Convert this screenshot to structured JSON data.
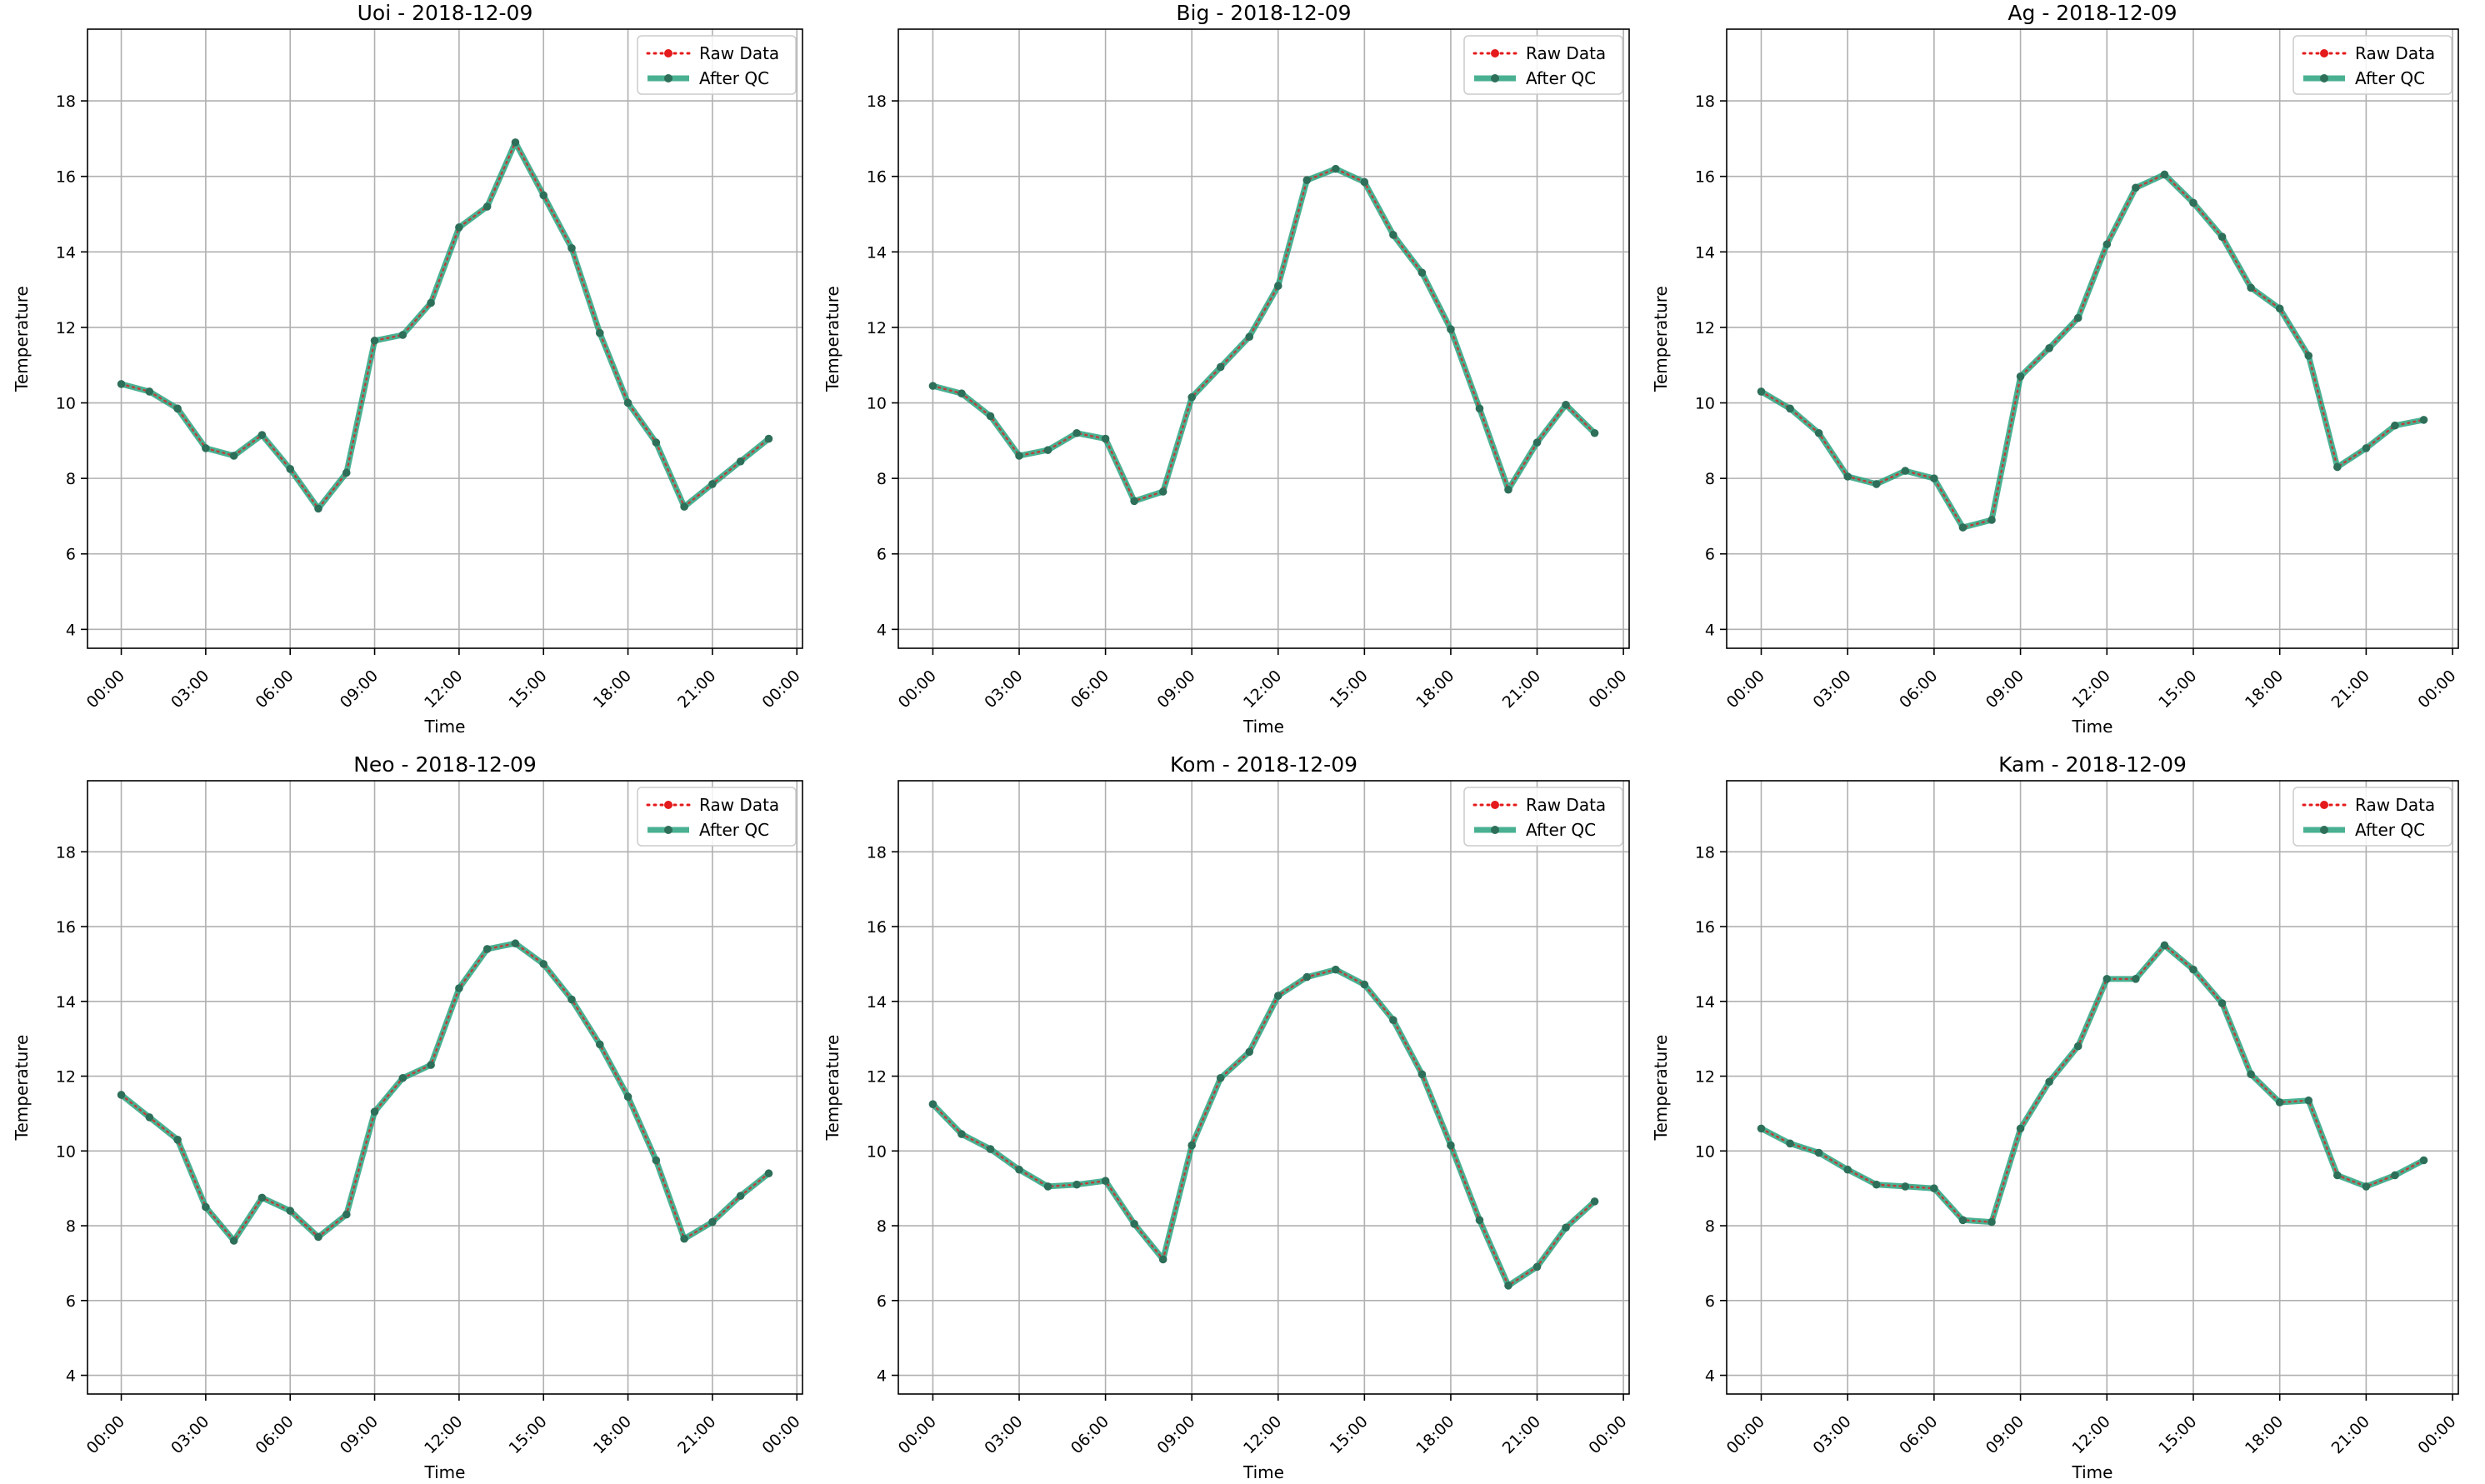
{
  "figure": {
    "ylabel": "Temperature",
    "xlabel": "Time"
  },
  "legend": {
    "placement": "upper-right",
    "raw_label": "Raw Data",
    "qc_label": "After QC"
  },
  "colors": {
    "raw": "#e41a1c",
    "qc": "#1b9e77",
    "qc_marker": "#2e6f5a",
    "grid": "#b0b0b0"
  },
  "chart_data": [
    {
      "type": "line",
      "title": "Uoi - 2018-12-09",
      "xlabel": "Time",
      "ylabel": "Temperature",
      "x_unit": "hour",
      "x": [
        0,
        1,
        2,
        3,
        4,
        5,
        6,
        7,
        8,
        9,
        10,
        11,
        12,
        13,
        14,
        15,
        16,
        17,
        18,
        19,
        20,
        21,
        22,
        23
      ],
      "xlim": [
        -1.2,
        24.2
      ],
      "ylim": [
        3.5,
        19.9
      ],
      "x_ticks": [
        0,
        3,
        6,
        9,
        12,
        15,
        18,
        21,
        24
      ],
      "x_tick_labels": [
        "00:00",
        "03:00",
        "06:00",
        "09:00",
        "12:00",
        "15:00",
        "18:00",
        "21:00",
        "00:00"
      ],
      "y_ticks": [
        4,
        6,
        8,
        10,
        12,
        14,
        16,
        18
      ],
      "y_tick_labels": [
        "4",
        "6",
        "8",
        "10",
        "12",
        "14",
        "16",
        "18"
      ],
      "grid": true,
      "legend": "upper-right",
      "series": [
        {
          "name": "Raw Data",
          "values": [
            10.5,
            10.3,
            9.85,
            8.8,
            8.6,
            9.15,
            8.25,
            7.2,
            8.15,
            11.65,
            11.8,
            12.65,
            14.65,
            15.2,
            16.9,
            15.5,
            14.1,
            11.85,
            10.0,
            8.95,
            7.25,
            7.85,
            8.45,
            9.05
          ]
        },
        {
          "name": "After QC",
          "values": [
            10.5,
            10.3,
            9.85,
            8.8,
            8.6,
            9.15,
            8.25,
            7.2,
            8.15,
            11.65,
            11.8,
            12.65,
            14.65,
            15.2,
            16.9,
            15.5,
            14.1,
            11.85,
            10.0,
            8.95,
            7.25,
            7.85,
            8.45,
            9.05
          ]
        }
      ]
    },
    {
      "type": "line",
      "title": "Big - 2018-12-09",
      "xlabel": "Time",
      "ylabel": "Temperature",
      "x_unit": "hour",
      "x": [
        0,
        1,
        2,
        3,
        4,
        5,
        6,
        7,
        8,
        9,
        10,
        11,
        12,
        13,
        14,
        15,
        16,
        17,
        18,
        19,
        20,
        21,
        22,
        23
      ],
      "xlim": [
        -1.2,
        24.2
      ],
      "ylim": [
        3.5,
        19.9
      ],
      "x_ticks": [
        0,
        3,
        6,
        9,
        12,
        15,
        18,
        21,
        24
      ],
      "x_tick_labels": [
        "00:00",
        "03:00",
        "06:00",
        "09:00",
        "12:00",
        "15:00",
        "18:00",
        "21:00",
        "00:00"
      ],
      "y_ticks": [
        4,
        6,
        8,
        10,
        12,
        14,
        16,
        18
      ],
      "y_tick_labels": [
        "4",
        "6",
        "8",
        "10",
        "12",
        "14",
        "16",
        "18"
      ],
      "grid": true,
      "legend": "upper-right",
      "series": [
        {
          "name": "Raw Data",
          "values": [
            10.45,
            10.25,
            9.65,
            8.6,
            8.75,
            9.2,
            9.05,
            7.4,
            7.65,
            10.15,
            10.95,
            11.75,
            13.1,
            15.9,
            16.2,
            15.85,
            14.45,
            13.45,
            11.95,
            9.85,
            7.7,
            8.95,
            9.95,
            9.2
          ]
        },
        {
          "name": "After QC",
          "values": [
            10.45,
            10.25,
            9.65,
            8.6,
            8.75,
            9.2,
            9.05,
            7.4,
            7.65,
            10.15,
            10.95,
            11.75,
            13.1,
            15.9,
            16.2,
            15.85,
            14.45,
            13.45,
            11.95,
            9.85,
            7.7,
            8.95,
            9.95,
            9.2
          ]
        }
      ]
    },
    {
      "type": "line",
      "title": "Ag - 2018-12-09",
      "xlabel": "Time",
      "ylabel": "Temperature",
      "x_unit": "hour",
      "x": [
        0,
        1,
        2,
        3,
        4,
        5,
        6,
        7,
        8,
        9,
        10,
        11,
        12,
        13,
        14,
        15,
        16,
        17,
        18,
        19,
        20,
        21,
        22,
        23
      ],
      "xlim": [
        -1.2,
        24.2
      ],
      "ylim": [
        3.5,
        19.9
      ],
      "x_ticks": [
        0,
        3,
        6,
        9,
        12,
        15,
        18,
        21,
        24
      ],
      "x_tick_labels": [
        "00:00",
        "03:00",
        "06:00",
        "09:00",
        "12:00",
        "15:00",
        "18:00",
        "21:00",
        "00:00"
      ],
      "y_ticks": [
        4,
        6,
        8,
        10,
        12,
        14,
        16,
        18
      ],
      "y_tick_labels": [
        "4",
        "6",
        "8",
        "10",
        "12",
        "14",
        "16",
        "18"
      ],
      "grid": true,
      "legend": "upper-right",
      "series": [
        {
          "name": "Raw Data",
          "values": [
            10.3,
            9.85,
            9.2,
            8.05,
            7.85,
            8.2,
            8.0,
            6.7,
            6.9,
            10.7,
            11.45,
            12.25,
            14.2,
            15.7,
            16.05,
            15.3,
            14.4,
            13.05,
            12.5,
            11.25,
            8.3,
            8.8,
            9.4,
            9.55
          ]
        },
        {
          "name": "After QC",
          "values": [
            10.3,
            9.85,
            9.2,
            8.05,
            7.85,
            8.2,
            8.0,
            6.7,
            6.9,
            10.7,
            11.45,
            12.25,
            14.2,
            15.7,
            16.05,
            15.3,
            14.4,
            13.05,
            12.5,
            11.25,
            8.3,
            8.8,
            9.4,
            9.55
          ]
        }
      ]
    },
    {
      "type": "line",
      "title": "Neo - 2018-12-09",
      "xlabel": "Time",
      "ylabel": "Temperature",
      "x_unit": "hour",
      "x": [
        0,
        1,
        2,
        3,
        4,
        5,
        6,
        7,
        8,
        9,
        10,
        11,
        12,
        13,
        14,
        15,
        16,
        17,
        18,
        19,
        20,
        21,
        22,
        23
      ],
      "xlim": [
        -1.2,
        24.2
      ],
      "ylim": [
        3.5,
        19.9
      ],
      "x_ticks": [
        0,
        3,
        6,
        9,
        12,
        15,
        18,
        21,
        24
      ],
      "x_tick_labels": [
        "00:00",
        "03:00",
        "06:00",
        "09:00",
        "12:00",
        "15:00",
        "18:00",
        "21:00",
        "00:00"
      ],
      "y_ticks": [
        4,
        6,
        8,
        10,
        12,
        14,
        16,
        18
      ],
      "y_tick_labels": [
        "4",
        "6",
        "8",
        "10",
        "12",
        "14",
        "16",
        "18"
      ],
      "grid": true,
      "legend": "upper-right",
      "series": [
        {
          "name": "Raw Data",
          "values": [
            11.5,
            10.9,
            10.3,
            8.5,
            7.6,
            8.75,
            8.4,
            7.7,
            8.3,
            11.05,
            11.95,
            12.3,
            14.35,
            15.4,
            15.55,
            15.0,
            14.05,
            12.85,
            11.45,
            9.75,
            7.65,
            8.1,
            8.8,
            9.4
          ]
        },
        {
          "name": "After QC",
          "values": [
            11.5,
            10.9,
            10.3,
            8.5,
            7.6,
            8.75,
            8.4,
            7.7,
            8.3,
            11.05,
            11.95,
            12.3,
            14.35,
            15.4,
            15.55,
            15.0,
            14.05,
            12.85,
            11.45,
            9.75,
            7.65,
            8.1,
            8.8,
            9.4
          ]
        }
      ]
    },
    {
      "type": "line",
      "title": "Kom - 2018-12-09",
      "xlabel": "Time",
      "ylabel": "Temperature",
      "x_unit": "hour",
      "x": [
        0,
        1,
        2,
        3,
        4,
        5,
        6,
        7,
        8,
        9,
        10,
        11,
        12,
        13,
        14,
        15,
        16,
        17,
        18,
        19,
        20,
        21,
        22,
        23
      ],
      "xlim": [
        -1.2,
        24.2
      ],
      "ylim": [
        3.5,
        19.9
      ],
      "x_ticks": [
        0,
        3,
        6,
        9,
        12,
        15,
        18,
        21,
        24
      ],
      "x_tick_labels": [
        "00:00",
        "03:00",
        "06:00",
        "09:00",
        "12:00",
        "15:00",
        "18:00",
        "21:00",
        "00:00"
      ],
      "y_ticks": [
        4,
        6,
        8,
        10,
        12,
        14,
        16,
        18
      ],
      "y_tick_labels": [
        "4",
        "6",
        "8",
        "10",
        "12",
        "14",
        "16",
        "18"
      ],
      "grid": true,
      "legend": "upper-right",
      "series": [
        {
          "name": "Raw Data",
          "values": [
            11.25,
            10.45,
            10.05,
            9.5,
            9.05,
            9.1,
            9.2,
            8.05,
            7.1,
            10.15,
            11.95,
            12.65,
            14.15,
            14.65,
            14.85,
            14.45,
            13.5,
            12.05,
            10.15,
            8.15,
            6.4,
            6.9,
            7.95,
            8.65
          ]
        },
        {
          "name": "After QC",
          "values": [
            11.25,
            10.45,
            10.05,
            9.5,
            9.05,
            9.1,
            9.2,
            8.05,
            7.1,
            10.15,
            11.95,
            12.65,
            14.15,
            14.65,
            14.85,
            14.45,
            13.5,
            12.05,
            10.15,
            8.15,
            6.4,
            6.9,
            7.95,
            8.65
          ]
        }
      ]
    },
    {
      "type": "line",
      "title": "Kam - 2018-12-09",
      "xlabel": "Time",
      "ylabel": "Temperature",
      "x_unit": "hour",
      "x": [
        0,
        1,
        2,
        3,
        4,
        5,
        6,
        7,
        8,
        9,
        10,
        11,
        12,
        13,
        14,
        15,
        16,
        17,
        18,
        19,
        20,
        21,
        22,
        23
      ],
      "xlim": [
        -1.2,
        24.2
      ],
      "ylim": [
        3.5,
        19.9
      ],
      "x_ticks": [
        0,
        3,
        6,
        9,
        12,
        15,
        18,
        21,
        24
      ],
      "x_tick_labels": [
        "00:00",
        "03:00",
        "06:00",
        "09:00",
        "12:00",
        "15:00",
        "18:00",
        "21:00",
        "00:00"
      ],
      "y_ticks": [
        4,
        6,
        8,
        10,
        12,
        14,
        16,
        18
      ],
      "y_tick_labels": [
        "4",
        "6",
        "8",
        "10",
        "12",
        "14",
        "16",
        "18"
      ],
      "grid": true,
      "legend": "upper-right",
      "series": [
        {
          "name": "Raw Data",
          "values": [
            10.6,
            10.2,
            9.95,
            9.5,
            9.1,
            9.05,
            9.0,
            8.15,
            8.1,
            10.6,
            11.85,
            12.8,
            14.6,
            14.6,
            15.5,
            14.85,
            13.95,
            12.05,
            11.3,
            11.35,
            9.35,
            9.05,
            9.35,
            9.75
          ]
        },
        {
          "name": "After QC",
          "values": [
            10.6,
            10.2,
            9.95,
            9.5,
            9.1,
            9.05,
            9.0,
            8.15,
            8.1,
            10.6,
            11.85,
            12.8,
            14.6,
            14.6,
            15.5,
            14.85,
            13.95,
            12.05,
            11.3,
            11.35,
            9.35,
            9.05,
            9.35,
            9.75
          ]
        }
      ]
    }
  ]
}
